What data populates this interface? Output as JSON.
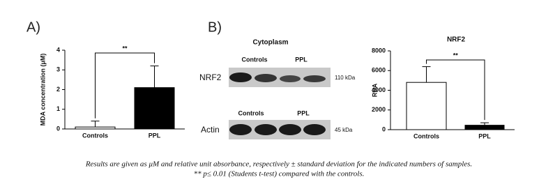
{
  "chart_data": [
    {
      "type": "bar",
      "y_label": "MDA concentration (μM)",
      "categories": [
        "Controls",
        "PPL"
      ],
      "values": [
        0.1,
        2.1
      ],
      "errors": [
        0.3,
        1.1
      ],
      "colors": [
        "#ffffff",
        "#000000"
      ],
      "ylim": [
        0,
        4
      ],
      "yticks": [
        0,
        1,
        2,
        3,
        4
      ],
      "significance": "**"
    },
    {
      "type": "bar",
      "title": "NRF2",
      "y_label": "RUA",
      "categories": [
        "Controls",
        "PPL"
      ],
      "values": [
        4800,
        450
      ],
      "errors": [
        1600,
        250
      ],
      "colors": [
        "#ffffff",
        "#000000"
      ],
      "ylim": [
        0,
        8000
      ],
      "yticks": [
        0,
        2000,
        4000,
        6000,
        8000
      ],
      "significance": "**"
    }
  ],
  "panels": [
    "A)",
    "B)"
  ],
  "blot": {
    "title": "Cytoplasm",
    "group_labels": [
      "Controls",
      "PPL"
    ],
    "rows": [
      {
        "label": "NRF2",
        "size": "110 kDa"
      },
      {
        "label": "Actin",
        "size": "45 kDa"
      }
    ]
  },
  "caption": [
    "Results are given as μM and relative unit absorbance, respectively ± standard deviation for the indicated numbers of samples.",
    "** p≤ 0.01 (Students t-test) compared with the controls."
  ]
}
